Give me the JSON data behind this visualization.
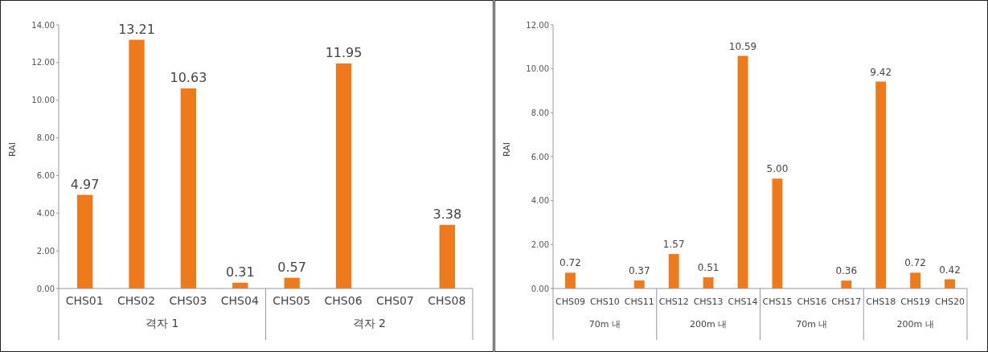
{
  "chart_data": [
    {
      "type": "bar",
      "ylabel": "RAI",
      "categories": [
        "CHS01",
        "CHS02",
        "CHS03",
        "CHS04",
        "CHS05",
        "CHS06",
        "CHS07",
        "CHS08"
      ],
      "values": [
        4.97,
        13.21,
        10.63,
        0.31,
        0.57,
        11.95,
        null,
        3.38
      ],
      "value_labels": [
        "4.97",
        "13.21",
        "10.63",
        "0.31",
        "0.57",
        "11.95",
        null,
        "3.38"
      ],
      "color": "#ee7a1b",
      "ylim": [
        0,
        14
      ],
      "yticks": [
        {
          "value": 0,
          "label": "0.00"
        },
        {
          "value": 2,
          "label": "2.00"
        },
        {
          "value": 4,
          "label": "4.00"
        },
        {
          "value": 6,
          "label": "6.00"
        },
        {
          "value": 8,
          "label": "8.00"
        },
        {
          "value": 10,
          "label": "10.00"
        },
        {
          "value": 12,
          "label": "12.00"
        },
        {
          "value": 14,
          "label": "14.00"
        }
      ],
      "annotations": [
        "격자 1",
        "격자 2"
      ]
    },
    {
      "type": "bar",
      "ylabel": "RAI",
      "categories": [
        "CHS09",
        "CHS10",
        "CHS11",
        "CHS12",
        "CHS13",
        "CHS14",
        "CHS15",
        "CHS16",
        "CHS17",
        "CHS18",
        "CHS19",
        "CHS20"
      ],
      "values": [
        0.72,
        null,
        0.37,
        1.57,
        0.51,
        10.59,
        5.0,
        null,
        0.36,
        9.42,
        0.72,
        0.42
      ],
      "value_labels": [
        "0.72",
        null,
        "0.37",
        "1.57",
        "0.51",
        "10.59",
        "5.00",
        null,
        "0.36",
        "9.42",
        "0.72",
        "0.42"
      ],
      "color": "#ee7a1b",
      "ylim": [
        0,
        12
      ],
      "yticks": [
        {
          "value": 0,
          "label": "0.00"
        },
        {
          "value": 2,
          "label": "2.00"
        },
        {
          "value": 4,
          "label": "4.00"
        },
        {
          "value": 6,
          "label": "6.00"
        },
        {
          "value": 8,
          "label": "8.00"
        },
        {
          "value": 10,
          "label": "10.00"
        },
        {
          "value": 12,
          "label": "12.00"
        }
      ],
      "annotations": [
        "70m 내",
        "200m 내",
        "70m 내",
        "200m 내"
      ]
    }
  ]
}
